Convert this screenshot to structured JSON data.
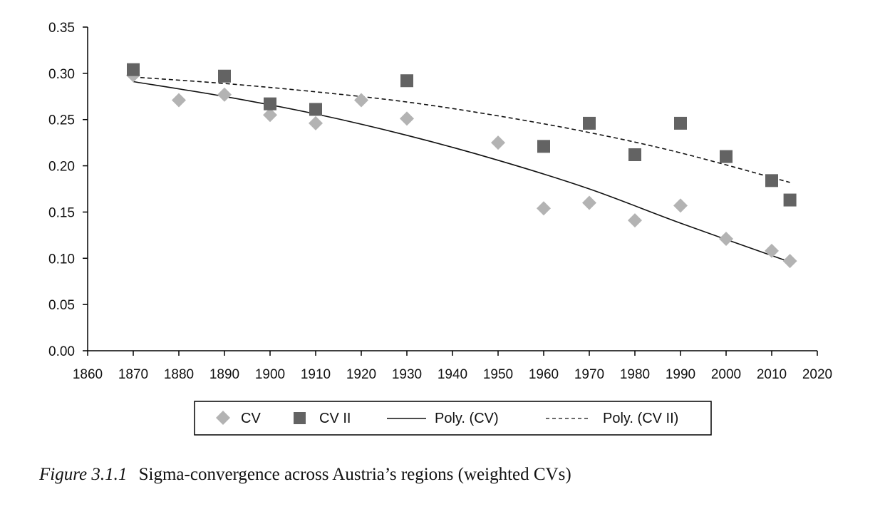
{
  "caption": {
    "figure_number": "Figure 3.1.1",
    "text": "Sigma-convergence across Austria’s regions (weighted CVs)"
  },
  "chart_data": {
    "type": "scatter",
    "title": "",
    "xlabel": "",
    "ylabel": "",
    "xlim": [
      1860,
      2020
    ],
    "ylim": [
      0,
      0.35
    ],
    "x_ticks": [
      1860,
      1870,
      1880,
      1890,
      1900,
      1910,
      1920,
      1930,
      1940,
      1950,
      1960,
      1970,
      1980,
      1990,
      2000,
      2010,
      2020
    ],
    "y_ticks": [
      0.0,
      0.05,
      0.1,
      0.15,
      0.2,
      0.25,
      0.3,
      0.35
    ],
    "y_tick_labels": [
      "0.00",
      "0.05",
      "0.10",
      "0.15",
      "0.20",
      "0.25",
      "0.30",
      "0.35"
    ],
    "grid": false,
    "legend_position": "bottom",
    "series": [
      {
        "name": "CV",
        "marker": "diamond",
        "color": "#b3b3b3",
        "x": [
          1870,
          1880,
          1890,
          1900,
          1910,
          1920,
          1930,
          1950,
          1960,
          1970,
          1980,
          1990,
          2000,
          2010,
          2014
        ],
        "y": [
          0.298,
          0.271,
          0.277,
          0.255,
          0.246,
          0.271,
          0.251,
          0.225,
          0.154,
          0.16,
          0.141,
          0.157,
          0.121,
          0.108,
          0.097
        ]
      },
      {
        "name": "CV II",
        "marker": "square",
        "color": "#636363",
        "x": [
          1870,
          1890,
          1900,
          1910,
          1930,
          1960,
          1970,
          1980,
          1990,
          2000,
          2010,
          2014
        ],
        "y": [
          0.304,
          0.297,
          0.267,
          0.261,
          0.292,
          0.221,
          0.246,
          0.212,
          0.246,
          0.21,
          0.184,
          0.163
        ]
      },
      {
        "name": "Poly. (CV)",
        "line_style": "solid",
        "color": "#111111",
        "x": [
          1870,
          1890,
          1910,
          1930,
          1950,
          1970,
          1990,
          2014
        ],
        "y": [
          0.291,
          0.275,
          0.256,
          0.233,
          0.206,
          0.175,
          0.138,
          0.096
        ]
      },
      {
        "name": "Poly. (CV II)",
        "line_style": "dashed",
        "color": "#111111",
        "x": [
          1870,
          1890,
          1910,
          1930,
          1950,
          1970,
          1990,
          2014
        ],
        "y": [
          0.296,
          0.289,
          0.28,
          0.269,
          0.254,
          0.236,
          0.214,
          0.182
        ]
      }
    ]
  }
}
